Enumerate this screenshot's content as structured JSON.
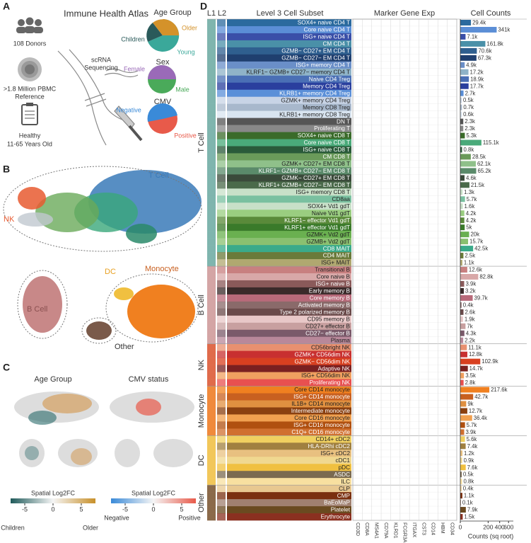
{
  "panel_a": {
    "letter": "A",
    "title": "Immune Health Atlas",
    "donors": "108 Donors",
    "reference": [
      ">1.8 Million PBMC",
      "Reference"
    ],
    "healthy": "Healthy",
    "age_range": "11-65 Years Old",
    "sequencing": [
      "scRNA",
      "Sequencing"
    ],
    "age_group": {
      "title": "Age Group",
      "labels": [
        "Older",
        "Children",
        "Young"
      ]
    },
    "sex": {
      "title": "Sex",
      "labels": [
        "Female",
        "Male"
      ]
    },
    "cmv": {
      "title": "CMV",
      "labels": [
        "Negative",
        "Positive"
      ]
    }
  },
  "panel_b": {
    "letter": "B",
    "labels": [
      "T Cell",
      "NK",
      "DC",
      "Monocyte",
      "B Cell",
      "Other"
    ]
  },
  "panel_c": {
    "letter": "C",
    "left_title": "Age Group",
    "right_title": "CMV status",
    "clim": [
      -7.5,
      7.5
    ],
    "left_legend": {
      "title": "Spatial Log2FC",
      "ticks": [
        -5,
        0,
        5
      ],
      "low": "Children",
      "high": "Older"
    },
    "right_legend": {
      "title": "Spatial Log2FC",
      "ticks": [
        -5,
        0,
        5
      ],
      "low": "Negative",
      "high": "Positive"
    }
  },
  "panel_d": {
    "letter": "D",
    "l1_header": "L1",
    "l2_header": "L2",
    "category_title": "Level 3 Cell Subset",
    "marker_title": "Marker Gene Exp",
    "genes": [
      "CD3D",
      "CD8A",
      "MS4A1",
      "CD79A",
      "KLRD1",
      "FCGR3A",
      "ITGAX",
      "CST3",
      "CD14",
      "HBM",
      "CD34"
    ]
  },
  "chart_data": {
    "type": "bar",
    "orientation": "horizontal",
    "title": "Cell Counts",
    "xlabel": "Counts (sq root)",
    "scale": "sqrt",
    "xlim": [
      0,
      650
    ],
    "xticks": [
      0,
      200,
      400,
      600
    ],
    "categories": [
      "SOX4+ naive CD4 T",
      "Core naive CD4 T",
      "ISG+ naive CD4 T",
      "CM CD4 T",
      "GZMB− CD27+ EM CD4 T",
      "GZMB− CD27− EM CD4 T",
      "ISG+ memory CD4 T",
      "KLRF1− GZMB+ CD27− memory CD4 T",
      "Naive CD4 Treg",
      "Memory CD4 Treg",
      "KLRB1+ memory CD4 Treg",
      "GZMK+ memory CD4 Treg",
      "Memory CD8 Treg",
      "KLRB1+ memory CD8 Treg",
      "DN T",
      "Proliferating T",
      "SOX4+ naive CD8 T",
      "Core naive CD8 T",
      "ISG+ naive CD8 T",
      "CM CD8 T",
      "GZMK+ CD27+ EM CD8 T",
      "KLRF1− GZMB+ CD27− EM CD8 T",
      "GZMK− CD27+ EM CD8 T",
      "KLRF1+ GZMB+ CD27− EM CD8 T",
      "ISG+ memory CD8 T",
      "CD8aa",
      "SOX4+ Vd1 gdT",
      "Naive Vd1 gdT",
      "KLRF1− effector Vd1 gdT",
      "KLRF1+ effector Vd1 gdT",
      "GZMK+ Vd2 gdT",
      "GZMB+ Vd2 gdT",
      "CD8 MAIT",
      "CD4 MAIT",
      "ISG+ MAIT",
      "Transitional B",
      "Core naive B",
      "ISG+ naive B",
      "Early memory B",
      "Core memory B",
      "Activated memory B",
      "Type 2 polarized memory B",
      "CD95 memory B",
      "CD27+ effector B",
      "CD27− effector B",
      "Plasma",
      "CD56bright NK",
      "GZMK+ CD56dim NK",
      "GZMK− CD56dim NK",
      "Adaptive NK",
      "ISG+ CD56dim NK",
      "Proliferating NK",
      "Core CD14 monocyte",
      "ISG+ CD14 monocyte",
      "IL1B+ CD14 monocyte",
      "Intermediate monocyte",
      "Core CD16 monocyte",
      "ISG+ CD16 monocyte",
      "C1Q+ CD16 monocyte",
      "CD14+ cDC2",
      "HLA-DRhi cDC2",
      "ISG+ cDC2",
      "cDC1",
      "pDC",
      "ASDC",
      "ILC",
      "CLP",
      "CMP",
      "BaEoMaP",
      "Platelet",
      "Erythrocyte"
    ],
    "values": [
      29.4,
      341,
      7.1,
      161.8,
      70.6,
      67.3,
      4.9,
      17.2,
      18.9,
      17.7,
      2.7,
      0.5,
      0.7,
      0.6,
      2.3,
      2.3,
      5.3,
      115.1,
      0.8,
      28.5,
      62.1,
      65.2,
      4.6,
      21.5,
      1.3,
      5.7,
      1.6,
      4.2,
      4.2,
      5,
      20,
      15.7,
      42.5,
      2.5,
      1.1,
      12.6,
      82.8,
      3.9,
      3.2,
      39.7,
      0.4,
      2.6,
      1.9,
      7,
      4.3,
      2.2,
      11.1,
      12.8,
      102.9,
      14.7,
      3.5,
      2.8,
      217.6,
      42.7,
      9,
      12.7,
      36.4,
      5.7,
      3.9,
      5.6,
      7.4,
      1.2,
      0.9,
      7.6,
      0.5,
      0.8,
      0.4,
      1.1,
      0.1,
      7.9,
      1.5
    ],
    "value_labels": [
      "29.4k",
      "341k",
      "7.1k",
      "161.8k",
      "70.6k",
      "67.3k",
      "4.9k",
      "17.2k",
      "18.9k",
      "17.7k",
      "2.7k",
      "0.5k",
      "0.7k",
      "0.6k",
      "2.3k",
      "2.3k",
      "5.3k",
      "115.1k",
      "0.8k",
      "28.5k",
      "62.1k",
      "65.2k",
      "4.6k",
      "21.5k",
      "1.3k",
      "5.7k",
      "1.6k",
      "4.2k",
      "4.2k",
      "5k",
      "20k",
      "15.7k",
      "42.5k",
      "2.5k",
      "1.1k",
      "12.6k",
      "82.8k",
      "3.9k",
      "3.2k",
      "39.7k",
      "0.4k",
      "2.6k",
      "1.9k",
      "7k",
      "4.3k",
      "2.2k",
      "11.1k",
      "12.8k",
      "102.9k",
      "14.7k",
      "3.5k",
      "2.8k",
      "217.6k",
      "42.7k",
      "9k",
      "12.7k",
      "36.4k",
      "5.7k",
      "3.9k",
      "5.6k",
      "7.4k",
      "1.2k",
      "0.9k",
      "7.6k",
      "0.5k",
      "0.8k",
      "0.4k",
      "1.1k",
      "0.1k",
      "7.9k",
      "1.5k"
    ],
    "colors": [
      "#2b6a9e",
      "#5b8ed6",
      "#3a4fa8",
      "#4a90a8",
      "#2f5f8f",
      "#1f3f6f",
      "#6a8fc8",
      "#8fb3c8",
      "#4a6fb5",
      "#2a3f9e",
      "#5a8fd8",
      "#c8d4e6",
      "#a8b8cc",
      "#d8e4f0",
      "#555555",
      "#888888",
      "#3a6b2a",
      "#4aaa7a",
      "#2a5a3a",
      "#6a9a5a",
      "#8fc08a",
      "#5a8a6a",
      "#3a4a3a",
      "#4a6a4a",
      "#c8e0c8",
      "#7ac0a0",
      "#c8e0c8",
      "#9acd80",
      "#5a8a3a",
      "#3a7a2a",
      "#6ab050",
      "#8ac070",
      "#3aaa8a",
      "#6a7a3a",
      "#b0a870",
      "#c88080",
      "#d8a8a8",
      "#8a5a5a",
      "#3a2a2a",
      "#b86a7a",
      "#8a6a6a",
      "#6a4a4a",
      "#e8c8c8",
      "#c8a0a0",
      "#7a5a6a",
      "#b8889a",
      "#e89070",
      "#c83030",
      "#d84020",
      "#7a2020",
      "#f0a060",
      "#e85050",
      "#f08020",
      "#c86020",
      "#e09040",
      "#8a4010",
      "#f0a050",
      "#b05010",
      "#d07030",
      "#f0d060",
      "#a08040",
      "#e8c080",
      "#f0d890",
      "#f0c040",
      "#7a6a50",
      "#f8e0a0",
      "#e8c890",
      "#7a3010",
      "#a08070",
      "#6a4a20",
      "#8a3020"
    ],
    "l1": [
      "T Cell",
      "T Cell",
      "T Cell",
      "T Cell",
      "T Cell",
      "T Cell",
      "T Cell",
      "T Cell",
      "T Cell",
      "T Cell",
      "T Cell",
      "T Cell",
      "T Cell",
      "T Cell",
      "T Cell",
      "T Cell",
      "T Cell",
      "T Cell",
      "T Cell",
      "T Cell",
      "T Cell",
      "T Cell",
      "T Cell",
      "T Cell",
      "T Cell",
      "T Cell",
      "T Cell",
      "T Cell",
      "T Cell",
      "T Cell",
      "T Cell",
      "T Cell",
      "T Cell",
      "T Cell",
      "T Cell",
      "B Cell",
      "B Cell",
      "B Cell",
      "B Cell",
      "B Cell",
      "B Cell",
      "B Cell",
      "B Cell",
      "B Cell",
      "B Cell",
      "B Cell",
      "NK",
      "NK",
      "NK",
      "NK",
      "NK",
      "NK",
      "Monocyte",
      "Monocyte",
      "Monocyte",
      "Monocyte",
      "Monocyte",
      "Monocyte",
      "Monocyte",
      "DC",
      "DC",
      "DC",
      "DC",
      "DC",
      "DC",
      "DC",
      "Other",
      "Other",
      "Other",
      "Other",
      "Other"
    ],
    "l1_colors": {
      "T Cell": "#7fb5ae",
      "B Cell": "#d4a5a5",
      "NK": "#e06b4b",
      "Monocyte": "#f08a3c",
      "DC": "#f2c75a",
      "Other": "#8b6a4a"
    }
  }
}
